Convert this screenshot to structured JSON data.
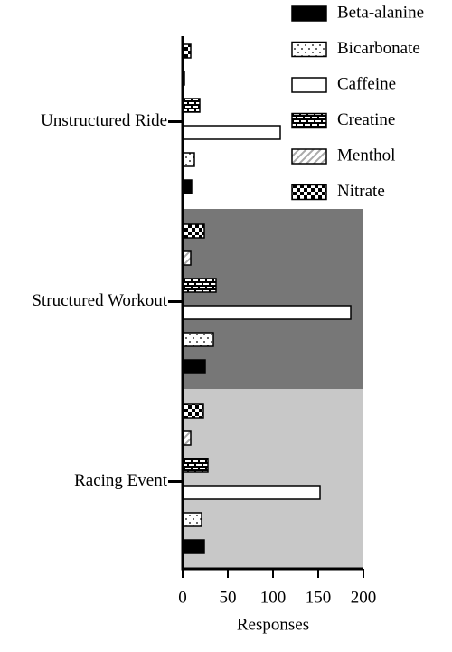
{
  "chart_data": {
    "type": "barh",
    "xlabel": "Responses",
    "categories": [
      "Unstructured Ride",
      "Structured Workout",
      "Racing Event"
    ],
    "category_backgrounds": [
      "#ffffff",
      "#777777",
      "#c8c8c8"
    ],
    "series": [
      {
        "name": "Beta-alanine",
        "color": "#000000",
        "pattern": "solid",
        "values": [
          10,
          25,
          24
        ]
      },
      {
        "name": "Bicarbonate",
        "color": "#000000",
        "pattern": "dots",
        "values": [
          13,
          34,
          21
        ]
      },
      {
        "name": "Caffeine",
        "color": "#000000",
        "pattern": "none",
        "values": [
          108,
          186,
          152
        ]
      },
      {
        "name": "Creatine",
        "color": "#000000",
        "pattern": "bricks",
        "values": [
          19,
          37,
          28
        ]
      },
      {
        "name": "Menthol",
        "color": "#000000",
        "pattern": "diagonal",
        "values": [
          2,
          9,
          9
        ]
      },
      {
        "name": "Nitrate",
        "color": "#000000",
        "pattern": "checker",
        "values": [
          9,
          24,
          23
        ]
      }
    ],
    "xlim": [
      0,
      200
    ],
    "xticks": [
      0,
      50,
      100,
      150,
      200
    ],
    "legend": "top-right"
  }
}
